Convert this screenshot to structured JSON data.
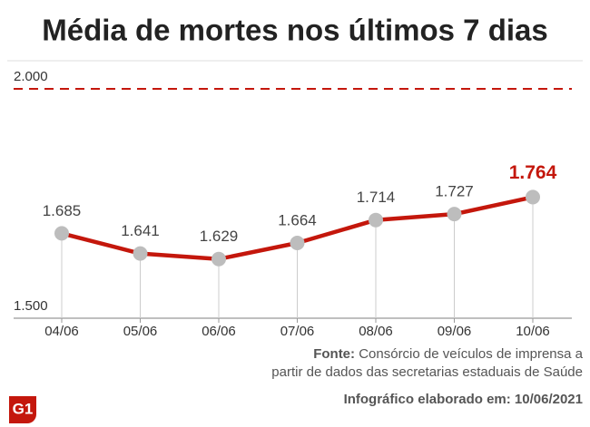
{
  "chart_data": {
    "type": "line",
    "title": "Média de mortes nos últimos 7 dias",
    "categories": [
      "04/06",
      "05/06",
      "06/06",
      "07/06",
      "08/06",
      "09/06",
      "10/06"
    ],
    "series": [
      {
        "name": "Média de mortes",
        "color": "#c4170c",
        "values": [
          1685,
          1641,
          1629,
          1664,
          1714,
          1727,
          1764
        ],
        "value_labels": [
          "1.685",
          "1.641",
          "1.629",
          "1.664",
          "1.714",
          "1.727",
          "1.764"
        ]
      }
    ],
    "ylim": [
      1500,
      2000
    ],
    "yticks": [
      {
        "value": 1500,
        "label": "1.500"
      },
      {
        "value": 2000,
        "label": "2.000"
      }
    ],
    "marker_color": "#bdbdbd",
    "source_label": "Fonte:",
    "source": [
      "Consórcio de veículos de imprensa a",
      "partir de dados das secretarias estaduais de Saúde"
    ],
    "credit": "Infográfico elaborado em: 10/06/2021",
    "logo": "G1"
  }
}
